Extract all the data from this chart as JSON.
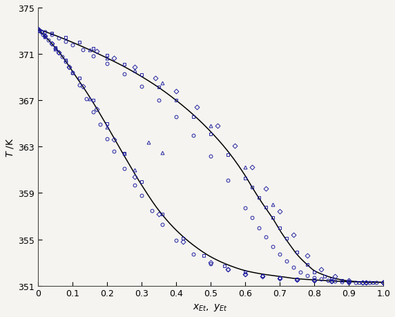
{
  "title": "",
  "xlabel": "$x_{Et},\\ y_{Et}$",
  "ylabel": "$T\\ /\\mathrm{K}$",
  "xlim": [
    0.0,
    1.0
  ],
  "ylim": [
    351,
    375
  ],
  "yticks": [
    351,
    355,
    359,
    363,
    367,
    371,
    375
  ],
  "xticks": [
    0.0,
    0.1,
    0.2,
    0.3,
    0.4,
    0.5,
    0.6,
    0.7,
    0.8,
    0.9,
    1.0
  ],
  "bg_color": "#f5f4f0",
  "plot_bg_color": "#f5f4f0",
  "bubble_curve_x": [
    0.0,
    0.01,
    0.02,
    0.04,
    0.06,
    0.08,
    0.1,
    0.13,
    0.16,
    0.2,
    0.25,
    0.3,
    0.35,
    0.4,
    0.45,
    0.5,
    0.55,
    0.6,
    0.65,
    0.7,
    0.75,
    0.8,
    0.85,
    0.9,
    0.95,
    1.0
  ],
  "bubble_curve_T": [
    373.15,
    372.85,
    372.55,
    371.9,
    371.2,
    370.4,
    369.5,
    368.2,
    366.8,
    364.8,
    362.2,
    359.7,
    357.5,
    355.8,
    354.5,
    353.5,
    352.8,
    352.3,
    352.0,
    351.8,
    351.6,
    351.5,
    351.4,
    351.35,
    351.3,
    351.3
  ],
  "dew_curve_x": [
    0.0,
    0.05,
    0.1,
    0.15,
    0.2,
    0.25,
    0.3,
    0.35,
    0.4,
    0.45,
    0.5,
    0.55,
    0.6,
    0.62,
    0.65,
    0.68,
    0.7,
    0.73,
    0.75,
    0.78,
    0.8,
    0.83,
    0.85,
    0.88,
    0.9,
    0.93,
    0.95,
    0.97,
    1.0
  ],
  "dew_curve_T": [
    373.15,
    372.6,
    372.0,
    371.35,
    370.65,
    369.9,
    369.05,
    368.1,
    367.0,
    365.75,
    364.3,
    362.6,
    360.5,
    359.5,
    358.1,
    356.8,
    355.8,
    354.5,
    353.7,
    352.8,
    352.3,
    351.9,
    351.7,
    351.5,
    351.4,
    351.35,
    351.3,
    351.3,
    351.3
  ],
  "kami_bubble_x": [
    0.0,
    0.005,
    0.01,
    0.015,
    0.02,
    0.03,
    0.04,
    0.05,
    0.06,
    0.07,
    0.08,
    0.09,
    0.1,
    0.12,
    0.14,
    0.16,
    0.18,
    0.2,
    0.22,
    0.25,
    0.28,
    0.3,
    0.33,
    0.36,
    0.4,
    0.45,
    0.5,
    0.55,
    0.6,
    0.65,
    0.7,
    0.75,
    0.8,
    0.85,
    0.9,
    0.95,
    1.0
  ],
  "kami_bubble_T": [
    373.15,
    373.05,
    372.9,
    372.7,
    372.55,
    372.2,
    371.9,
    371.5,
    371.15,
    370.75,
    370.35,
    369.9,
    369.4,
    368.3,
    367.1,
    366.0,
    364.9,
    363.7,
    362.6,
    361.1,
    359.7,
    358.8,
    357.5,
    356.3,
    354.9,
    353.7,
    352.9,
    352.4,
    352.0,
    351.8,
    351.65,
    351.5,
    351.45,
    351.4,
    351.35,
    351.3,
    351.3
  ],
  "kami_dew_x": [
    0.0,
    0.02,
    0.04,
    0.06,
    0.08,
    0.1,
    0.13,
    0.16,
    0.2,
    0.25,
    0.3,
    0.35,
    0.4,
    0.45,
    0.5,
    0.55,
    0.6,
    0.62,
    0.64,
    0.66,
    0.68,
    0.7,
    0.72,
    0.74,
    0.76,
    0.78,
    0.8,
    0.82,
    0.84,
    0.86,
    0.88,
    0.9,
    0.92,
    0.94,
    0.96,
    0.98,
    1.0
  ],
  "kami_dew_T": [
    373.15,
    372.9,
    372.65,
    372.4,
    372.1,
    371.8,
    371.35,
    370.85,
    370.15,
    369.25,
    368.2,
    367.0,
    365.6,
    364.0,
    362.2,
    360.1,
    357.7,
    356.9,
    356.0,
    355.2,
    354.4,
    353.7,
    353.1,
    352.6,
    352.2,
    351.9,
    351.7,
    351.55,
    351.45,
    351.4,
    351.35,
    351.3,
    351.3,
    351.3,
    351.3,
    351.3,
    351.3
  ],
  "arce_bubble_x": [
    0.0,
    0.02,
    0.05,
    0.08,
    0.12,
    0.16,
    0.2,
    0.25,
    0.3,
    0.36,
    0.42,
    0.48,
    0.54,
    0.6,
    0.65,
    0.7,
    0.75,
    0.8,
    0.85,
    0.9,
    0.95,
    1.0
  ],
  "arce_bubble_T": [
    373.15,
    372.55,
    371.55,
    370.45,
    368.9,
    367.0,
    365.0,
    362.4,
    360.0,
    357.2,
    355.1,
    353.6,
    352.7,
    352.2,
    351.9,
    351.7,
    351.55,
    351.5,
    351.4,
    351.35,
    351.3,
    351.3
  ],
  "arce_dew_x": [
    0.0,
    0.04,
    0.08,
    0.12,
    0.16,
    0.2,
    0.25,
    0.3,
    0.35,
    0.4,
    0.45,
    0.5,
    0.55,
    0.6,
    0.62,
    0.64,
    0.66,
    0.68,
    0.7,
    0.72,
    0.75,
    0.78,
    0.8,
    0.83,
    0.85,
    0.88,
    0.9,
    0.93,
    0.95,
    0.97,
    1.0
  ],
  "arce_dew_T": [
    373.15,
    372.8,
    372.45,
    372.0,
    371.5,
    370.9,
    370.1,
    369.2,
    368.15,
    367.0,
    365.6,
    364.1,
    362.3,
    360.3,
    359.5,
    358.6,
    357.8,
    356.9,
    356.0,
    355.1,
    353.9,
    352.8,
    352.2,
    351.8,
    351.6,
    351.45,
    351.35,
    351.3,
    351.3,
    351.3,
    351.3
  ],
  "yang_x": [
    0.02,
    0.05,
    0.1,
    0.15,
    0.2,
    0.25,
    0.28,
    0.32,
    0.36
  ],
  "yang_T": [
    372.5,
    371.45,
    369.4,
    367.1,
    364.7,
    362.4,
    361.0,
    363.4,
    362.5
  ],
  "yang_dew_x": [
    0.15,
    0.2,
    0.28,
    0.36,
    0.5,
    0.6,
    0.68
  ],
  "yang_dew_T": [
    371.35,
    370.65,
    369.6,
    368.5,
    364.8,
    361.2,
    358.0
  ],
  "lai_x": [
    0.005,
    0.01,
    0.02,
    0.04,
    0.06,
    0.09,
    0.13,
    0.17,
    0.22,
    0.28,
    0.35,
    0.42,
    0.5,
    0.55,
    0.6,
    0.65,
    0.7,
    0.75,
    0.8,
    0.85,
    0.9,
    0.95,
    1.0
  ],
  "lai_T": [
    373.05,
    372.9,
    372.55,
    371.9,
    371.15,
    369.9,
    368.2,
    366.25,
    363.6,
    360.4,
    357.2,
    354.8,
    353.0,
    352.4,
    352.0,
    351.8,
    351.65,
    351.5,
    351.45,
    351.4,
    351.35,
    351.3,
    351.3
  ],
  "lai_dew_x": [
    0.17,
    0.22,
    0.28,
    0.34,
    0.4,
    0.46,
    0.52,
    0.57,
    0.62,
    0.66,
    0.7,
    0.74,
    0.78,
    0.82,
    0.86,
    0.9,
    0.94,
    1.0
  ],
  "lai_dew_T": [
    371.25,
    370.65,
    369.85,
    368.9,
    367.8,
    366.4,
    364.8,
    363.1,
    361.2,
    359.4,
    357.4,
    355.4,
    353.6,
    352.4,
    351.8,
    351.45,
    351.3,
    351.3
  ],
  "marker_color": "#2020a0",
  "line_color": "#000000",
  "marker_size": 3.5,
  "line_width": 1.1
}
